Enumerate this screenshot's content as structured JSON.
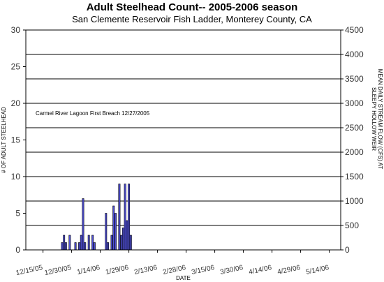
{
  "chart_data": {
    "type": "bar",
    "title": "Adult Steelhead Count-- 2005-2006 season",
    "subtitle": "San Clemente Reservoir Fish Ladder, Monterey County, CA",
    "xlabel": "DATE",
    "ylabel": "# OF ADULT STEELHEAD",
    "ylabel_right_line1": "MEAN DAILY STREAM FLOW (CFS) AT",
    "ylabel_right_line2": "SLEEPY HOLLOW WEIR",
    "ylim": [
      0,
      30
    ],
    "yticks": [
      "0",
      "5",
      "10",
      "15",
      "20",
      "25",
      "30"
    ],
    "ylim_right": [
      0,
      4500
    ],
    "yticks_right": [
      "0",
      "500",
      "1000",
      "1500",
      "2000",
      "2500",
      "3000",
      "3500",
      "4000",
      "4500"
    ],
    "xlim": [
      "2005-12-06",
      "2006-05-20"
    ],
    "xticks": [
      {
        "date": "2005-12-15",
        "label": "12/15/05"
      },
      {
        "date": "2005-12-30",
        "label": "12/30/05"
      },
      {
        "date": "2006-01-14",
        "label": "1/14/06"
      },
      {
        "date": "2006-01-29",
        "label": "1/29/06"
      },
      {
        "date": "2006-02-13",
        "label": "2/13/06"
      },
      {
        "date": "2006-02-28",
        "label": "2/28/06"
      },
      {
        "date": "2006-03-15",
        "label": "3/15/06"
      },
      {
        "date": "2006-03-30",
        "label": "3/30/06"
      },
      {
        "date": "2006-04-14",
        "label": "4/14/06"
      },
      {
        "date": "2006-04-29",
        "label": "4/29/06"
      },
      {
        "date": "2006-05-14",
        "label": "5/14/06"
      }
    ],
    "grid": "horizontal lines at right-axis ticks",
    "annotation": "Carmel River Lagoon First Breach 12/27/2005",
    "bar_color": "#4f4fd6",
    "series": [
      {
        "dates": [
          "2005-12-25",
          "2005-12-26",
          "2005-12-27",
          "2005-12-29",
          "2006-01-01",
          "2006-01-03",
          "2006-01-04",
          "2006-01-05",
          "2006-01-06",
          "2006-01-08",
          "2006-01-10",
          "2006-01-11",
          "2006-01-17",
          "2006-01-18",
          "2006-01-20",
          "2006-01-21",
          "2006-01-22",
          "2006-01-24",
          "2006-01-25",
          "2006-01-26",
          "2006-01-27",
          "2006-01-28",
          "2006-01-29",
          "2006-01-30"
        ],
        "values": [
          1,
          2,
          1,
          2,
          1,
          1,
          2,
          7,
          1,
          2,
          2,
          1,
          5,
          1,
          2,
          6,
          5,
          9,
          2,
          3,
          9,
          4,
          9,
          2
        ]
      }
    ]
  }
}
